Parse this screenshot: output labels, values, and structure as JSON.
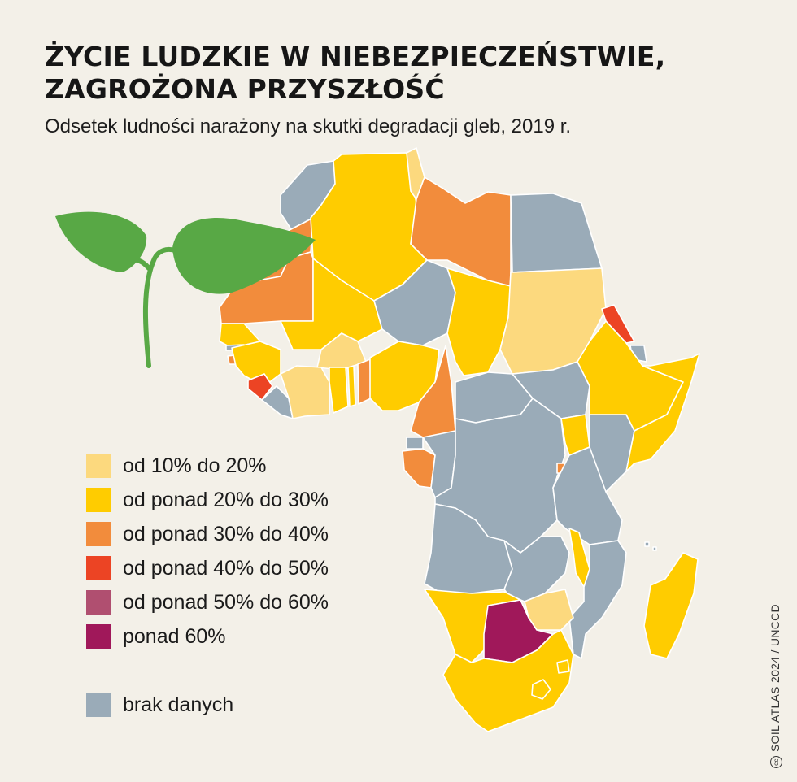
{
  "title_line1": "ŻYCIE LUDZKIE W NIEBEZPIECZEŃSTWIE,",
  "title_line2": "ZAGROŻONA PRZYSZŁOŚĆ",
  "subtitle": "Odsetek ludności narażony na skutki degradacji gleb, 2019 r.",
  "legend": [
    {
      "label": "od 10% do 20%",
      "color": "#fcd97e"
    },
    {
      "label": "od ponad 20% do 30%",
      "color": "#ffcc00"
    },
    {
      "label": "od ponad 30% do 40%",
      "color": "#f28c3c"
    },
    {
      "label": "od ponad 40% do 50%",
      "color": "#ec4424"
    },
    {
      "label": "od ponad 50% do 60%",
      "color": "#b04f70"
    },
    {
      "label": "ponad 60%",
      "color": "#a0185a"
    }
  ],
  "no_data": {
    "label": "brak danych",
    "color": "#9aabb8"
  },
  "source": "SOIL ATLAS 2024 / UNCCD",
  "source_icon": "cc",
  "leaf_color": "#58a845"
}
